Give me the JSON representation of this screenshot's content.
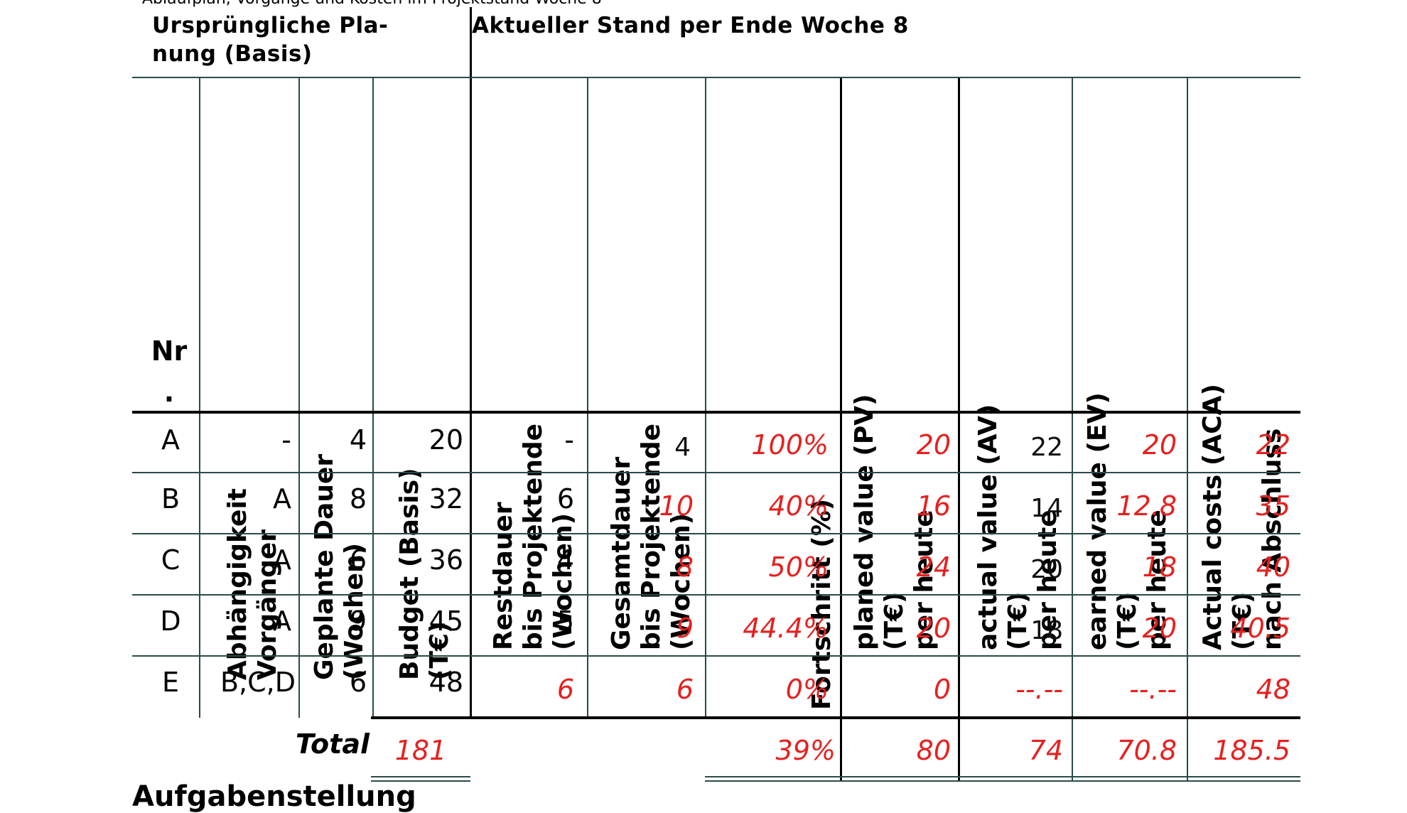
{
  "top_cut_text": "Ablaufplan, Vorgänge und Kosten im Projektstand Woche 8",
  "group_left": "Ursprüngliche Pla-\nnung (Basis)",
  "group_right": "Aktueller Stand per Ende Woche 8",
  "headers": {
    "nr": "Nr\n.",
    "dependency": "Abhängigkeit\nVorgänger",
    "planned_duration": "Geplante Dauer\n(Wochen)",
    "budget": "Budget (Basis)\n(T€)",
    "remaining": "Restdauer\nbis Projektende\n(Wochen)",
    "total_duration": "Gesamtdauer\nbis Projektende\n(Wochen)",
    "progress": "Fortschritt (%)",
    "pv": "planed value (PV)\n(T€)\nper heute",
    "av": "actual value (AV)\n(T€)\nper heute",
    "ev": "earned value (EV)\n(T€)\nper heute",
    "aca": "Actual costs (ACA)\n(T€)\nnach Abschluss"
  },
  "rows": [
    {
      "nr": "A",
      "dep": "-",
      "dur": "4",
      "budget": "20",
      "rest": "-",
      "total": "4",
      "progress": "100%",
      "pv": "20",
      "av": "22",
      "ev": "20",
      "aca": "22"
    },
    {
      "nr": "B",
      "dep": "A",
      "dur": "8",
      "budget": "32",
      "rest": "6",
      "total": "10",
      "progress": "40%",
      "pv": "16",
      "av": "14",
      "ev": "12.8",
      "aca": "35"
    },
    {
      "nr": "C",
      "dep": "A",
      "dur": "6",
      "budget": "36",
      "rest": "4",
      "total": "8",
      "progress": "50%",
      "pv": "24",
      "av": "20",
      "ev": "18",
      "aca": "40"
    },
    {
      "nr": "D",
      "dep": "A",
      "dur": "9",
      "budget": "45",
      "rest": "5",
      "total": "9",
      "progress": "44.4%",
      "pv": "20",
      "av": "18",
      "ev": "20",
      "aca": "40.5"
    },
    {
      "nr": "E",
      "dep": "B,C,D",
      "dur": "6",
      "budget": "48",
      "rest": "6",
      "total": "6",
      "progress": "0%",
      "pv": "0",
      "av": "--.--",
      "ev": "--.--",
      "aca": "48"
    }
  ],
  "totals": {
    "label": "Total",
    "budget": "181",
    "progress": "39%",
    "pv": "80",
    "av": "74",
    "ev": "70.8",
    "aca": "185.5"
  },
  "bottom_heading": "Aufgabenstellung",
  "colors": {
    "red_values": "#e6201f",
    "grid": "#2b4a4a"
  }
}
